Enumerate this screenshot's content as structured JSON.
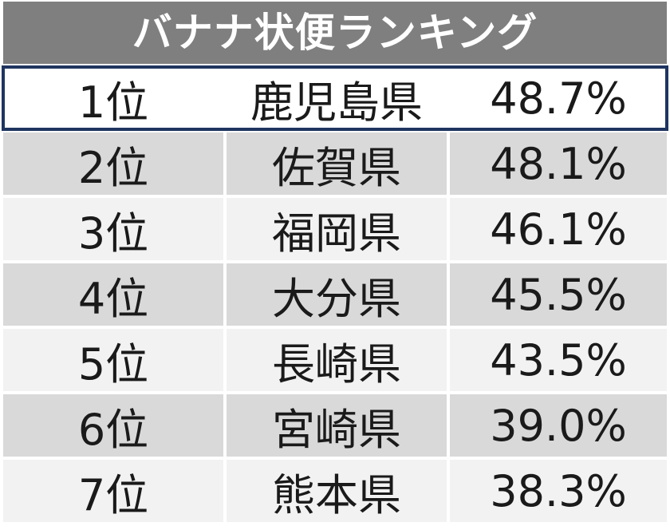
{
  "title": "バナナ状便ランキング",
  "rows": [
    {
      "rank": "1位",
      "prefecture": "鹿児島県",
      "value": "48.7%"
    },
    {
      "rank": "2位",
      "prefecture": "佐賀県",
      "value": "48.1%"
    },
    {
      "rank": "3位",
      "prefecture": "福岡県",
      "value": "46.1%"
    },
    {
      "rank": "4位",
      "prefecture": "大分県",
      "value": "45.5%"
    },
    {
      "rank": "5位",
      "prefecture": "長崎県",
      "value": "43.5%"
    },
    {
      "rank": "6位",
      "prefecture": "宮崎県",
      "value": "39.0%"
    },
    {
      "rank": "7位",
      "prefecture": "熊本県",
      "value": "38.3%"
    }
  ],
  "colors": {
    "header_bg": "#7f7f7f",
    "row_dark": "#d9d9d9",
    "row_light": "#f2f2f2",
    "highlight_border": "#1f3560"
  }
}
